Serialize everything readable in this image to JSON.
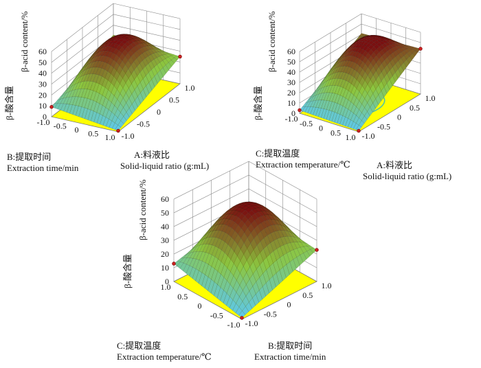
{
  "chart_data": [
    {
      "type": "surface3d",
      "z_label": "β-acid content/%",
      "z_label_cn": "β-酸含量",
      "z_ticks": [
        "0",
        "10",
        "20",
        "30",
        "40",
        "50",
        "60"
      ],
      "zlim": [
        0,
        60
      ],
      "x_axis": {
        "label_cn": "B:提取时间",
        "label_en": "Extraction time/min",
        "ticks": [
          "-1.0",
          "-0.5",
          "0",
          "0.5",
          "1.0"
        ],
        "range": [
          -1,
          1
        ]
      },
      "y_axis": {
        "label_cn": "A:料液比",
        "label_en": "Solid-liquid ratio (g:mL)",
        "ticks": [
          "-1.0",
          "-0.5",
          "0",
          "0.5",
          "1.0"
        ],
        "range": [
          -1,
          1
        ]
      },
      "surface": {
        "peak": 52,
        "peak_at": [
          0,
          0
        ],
        "corner_left": 9,
        "corner_right": 25,
        "corner_back": 31,
        "corner_front": 1
      },
      "floor_contour": "ellipse",
      "contour_color": "#ff3b00"
    },
    {
      "type": "surface3d",
      "z_label": "β-acid content/%",
      "z_label_cn": "β-酸含量",
      "z_ticks": [
        "0",
        "10",
        "20",
        "30",
        "40",
        "50",
        "60"
      ],
      "zlim": [
        0,
        60
      ],
      "x_axis": {
        "label_cn": "C:提取温度",
        "label_en": "Extraction temperature/℃",
        "ticks": [
          "-1.0",
          "-0.5",
          "0",
          "0.5",
          "1.0"
        ],
        "range": [
          -1,
          1
        ]
      },
      "y_axis": {
        "label_cn": "A:料液比",
        "label_en": "Solid-liquid ratio (g:mL)",
        "ticks": [
          "-1.0",
          "-0.5",
          "0",
          "0.5",
          "1.0"
        ],
        "range": [
          -1,
          1
        ]
      },
      "surface": {
        "peak": 54,
        "peak_at": [
          0,
          0
        ],
        "corner_left": 3,
        "corner_right": 44,
        "corner_back": 41,
        "corner_front": 1
      },
      "floor_contour": "ellipse",
      "contour_color": "#4fc3a8"
    },
    {
      "type": "surface3d",
      "z_label": "β-acid content/%",
      "z_label_cn": "β-酸含量",
      "z_ticks": [
        "0",
        "10",
        "20",
        "30",
        "40",
        "50",
        "60"
      ],
      "zlim": [
        0,
        60
      ],
      "x_axis": {
        "label_cn": "C:提取温度",
        "label_en": "Extraction temperature/℃",
        "ticks": [
          "1.0",
          "0.5",
          "0",
          "-0.5",
          "-1.0"
        ],
        "range": [
          1,
          -1
        ]
      },
      "y_axis": {
        "label_cn": "B:提取时间",
        "label_en": "Extraction time/min",
        "ticks": [
          "-1.0",
          "-0.5",
          "0",
          "0.5",
          "1.0"
        ],
        "range": [
          -1,
          1
        ]
      },
      "surface": {
        "peak": 52,
        "peak_at": [
          0,
          0
        ],
        "corner_left": 13,
        "corner_right": 23,
        "corner_back": 28,
        "corner_front": 1
      },
      "floor_contour": "ellipse",
      "contour_color": "#4fc3a8"
    }
  ],
  "colors": {
    "floor": "#ffff00",
    "surface_low": "#5bc8f5",
    "surface_mid": "#8cc63f",
    "surface_high": "#7a1010",
    "grid": "#888888",
    "point": "#cc2222"
  }
}
